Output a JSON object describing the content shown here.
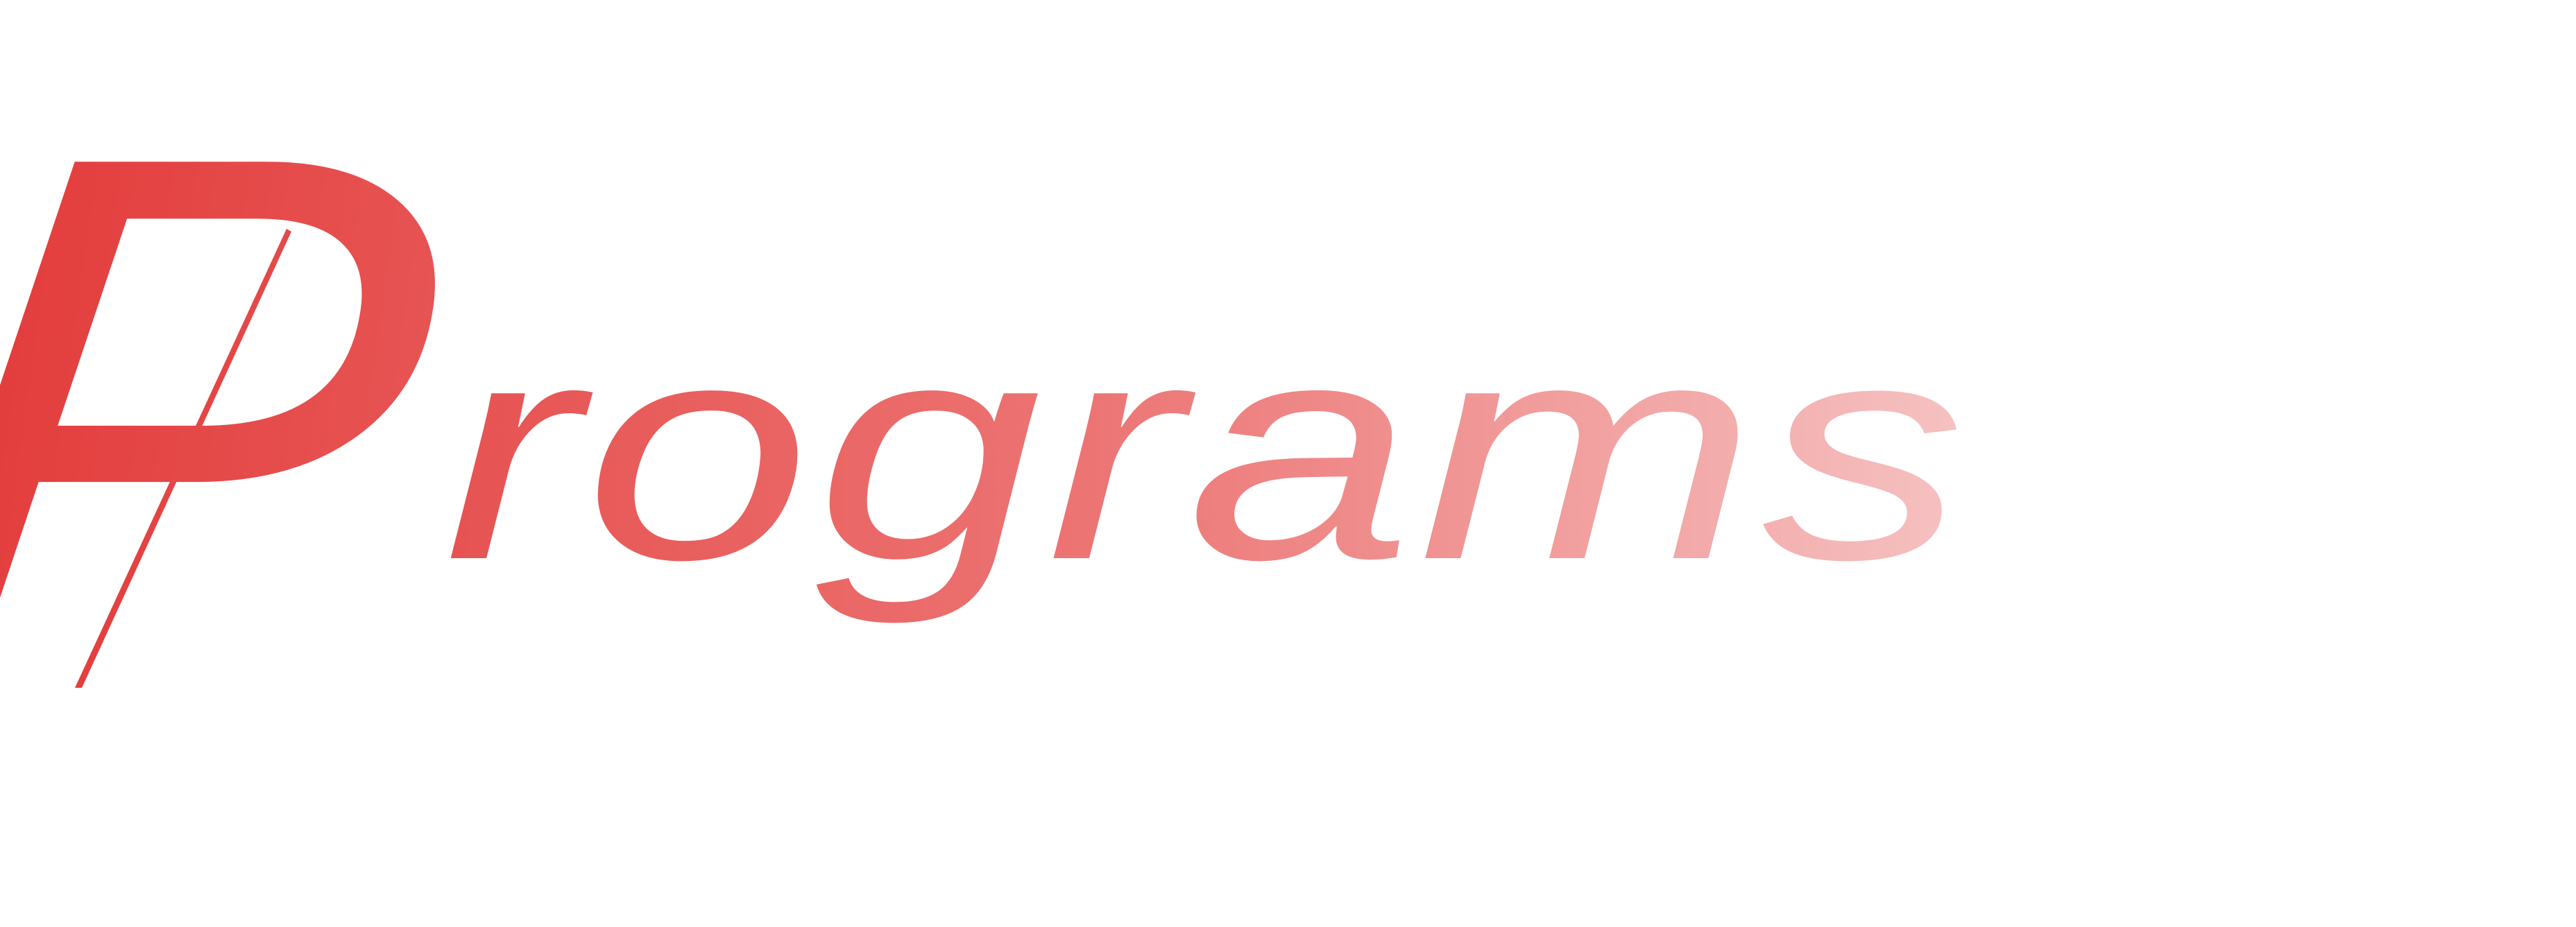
{
  "wordmark": {
    "initial": "P",
    "rest": "rograms"
  },
  "colors": {
    "gradient_start": "#e23b3a",
    "gradient_mid": "#ec7473",
    "gradient_end": "#f6c2c2",
    "background": "#ffffff"
  }
}
